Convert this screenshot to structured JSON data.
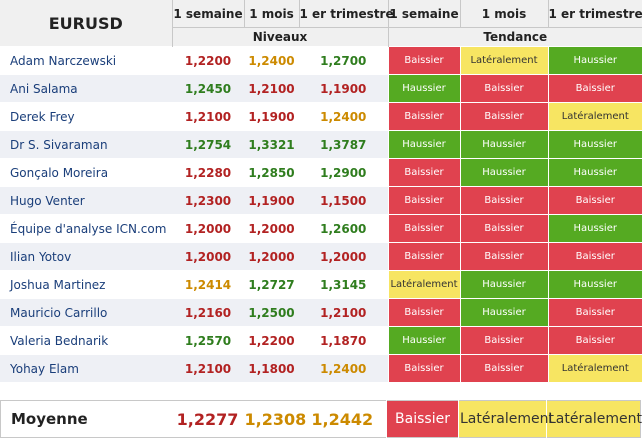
{
  "header": {
    "pair": "EURUSD",
    "period_1w": "1 semaine",
    "period_1m": "1 mois",
    "period_q": "1 er trimestre",
    "group_levels": "Niveaux",
    "group_trend": "Tendance"
  },
  "rows": [
    {
      "name": "Adam Narczewski",
      "l1": "1,2200",
      "l2": "1,2400",
      "l3": "1,2700",
      "t1": "Baissier",
      "t2": "Latéralement",
      "t3": "Haussier"
    },
    {
      "name": "Ani Salama",
      "l1": "1,2450",
      "l2": "1,2100",
      "l3": "1,1900",
      "t1": "Haussier",
      "t2": "Baissier",
      "t3": "Baissier"
    },
    {
      "name": "Derek Frey",
      "l1": "1,2100",
      "l2": "1,1900",
      "l3": "1,2400",
      "t1": "Baissier",
      "t2": "Baissier",
      "t3": "Latéralement"
    },
    {
      "name": "Dr S. Sivaraman",
      "l1": "1,2754",
      "l2": "1,3321",
      "l3": "1,3787",
      "t1": "Haussier",
      "t2": "Haussier",
      "t3": "Haussier"
    },
    {
      "name": "Gonçalo Moreira",
      "l1": "1,2280",
      "l2": "1,2850",
      "l3": "1,2900",
      "t1": "Baissier",
      "t2": "Haussier",
      "t3": "Haussier"
    },
    {
      "name": "Hugo Venter",
      "l1": "1,2300",
      "l2": "1,1900",
      "l3": "1,1500",
      "t1": "Baissier",
      "t2": "Baissier",
      "t3": "Baissier"
    },
    {
      "name": "Équipe d'analyse ICN.com",
      "l1": "1,2000",
      "l2": "1,2000",
      "l3": "1,2600",
      "t1": "Baissier",
      "t2": "Baissier",
      "t3": "Haussier"
    },
    {
      "name": "Ilian Yotov",
      "l1": "1,2000",
      "l2": "1,2000",
      "l3": "1,2000",
      "t1": "Baissier",
      "t2": "Baissier",
      "t3": "Baissier"
    },
    {
      "name": "Joshua Martinez",
      "l1": "1,2414",
      "l2": "1,2727",
      "l3": "1,3145",
      "t1": "Latéralement",
      "t2": "Haussier",
      "t3": "Haussier"
    },
    {
      "name": "Mauricio Carrillo",
      "l1": "1,2160",
      "l2": "1,2500",
      "l3": "1,2100",
      "t1": "Baissier",
      "t2": "Haussier",
      "t3": "Baissier"
    },
    {
      "name": "Valeria Bednarik",
      "l1": "1,2570",
      "l2": "1,2200",
      "l3": "1,1870",
      "t1": "Haussier",
      "t2": "Baissier",
      "t3": "Baissier"
    },
    {
      "name": "Yohay Elam",
      "l1": "1,2100",
      "l2": "1,1800",
      "l3": "1,2400",
      "t1": "Baissier",
      "t2": "Baissier",
      "t3": "Latéralement"
    }
  ],
  "average": {
    "label": "Moyenne",
    "l1": "1,2277",
    "l2": "1,2308",
    "l3": "1,2442",
    "t1": "Baissier",
    "t2": "Latéralement",
    "t3": "Latéralement"
  },
  "colors": {
    "baissier": "#e0424f",
    "haussier": "#55aa22",
    "lateralement": "#f7e562"
  }
}
